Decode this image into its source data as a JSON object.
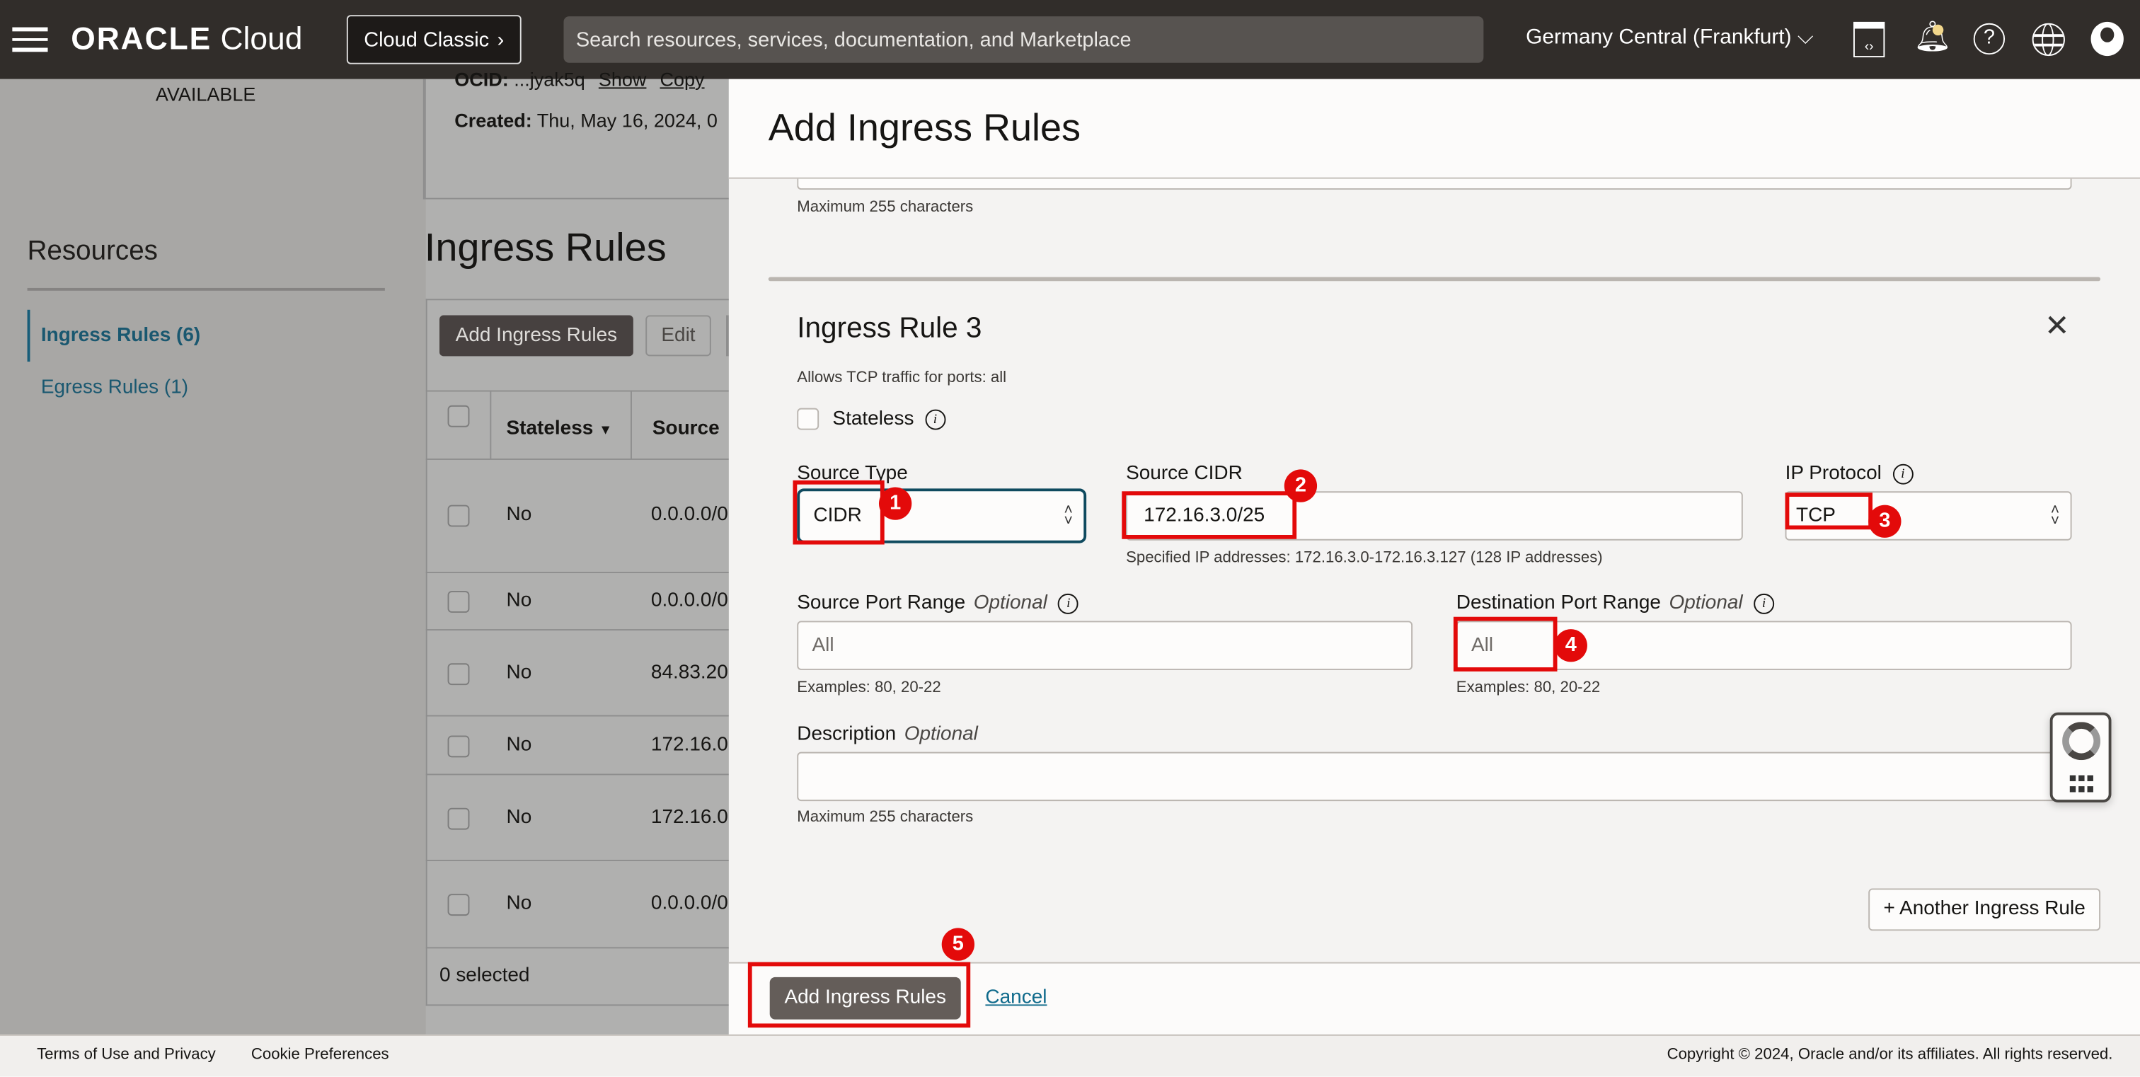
{
  "topbar": {
    "brand": "ORACLE",
    "brand_suffix": "Cloud",
    "classic_button": "Cloud Classic",
    "search_placeholder": "Search resources, services, documentation, and Marketplace",
    "region": "Germany Central (Frankfurt)",
    "icons": [
      "hamburger-menu-icon",
      "code-editor-icon",
      "bell-icon",
      "help-icon",
      "globe-icon",
      "profile-icon"
    ],
    "notification_dot_color": "#f2d78b"
  },
  "background_page": {
    "status": "AVAILABLE",
    "ocid_label": "OCID:",
    "ocid_value": "...jyak5q",
    "ocid_show": "Show",
    "ocid_copy": "Copy",
    "created_label": "Created:",
    "created_value": "Thu, May 16, 2024, 0",
    "resources_title": "Resources",
    "resources": [
      {
        "label": "Ingress Rules (6)",
        "active": true
      },
      {
        "label": "Egress Rules (1)",
        "active": false
      }
    ],
    "section_title": "Ingress Rules",
    "add_button": "Add Ingress Rules",
    "edit_button": "Edit",
    "columns": [
      "Stateless",
      "Source"
    ],
    "rows": [
      {
        "stateless": "No",
        "source": "0.0.0.0/0"
      },
      {
        "stateless": "No",
        "source": "0.0.0.0/0"
      },
      {
        "stateless": "No",
        "source": "84.83.20"
      },
      {
        "stateless": "No",
        "source": "172.16.0"
      },
      {
        "stateless": "No",
        "source": "172.16.0"
      },
      {
        "stateless": "No",
        "source": "0.0.0.0/0"
      }
    ],
    "selected_count": "0 selected"
  },
  "modal": {
    "title": "Add Ingress Rules",
    "prev_help": "Maximum 255 characters",
    "rule_title": "Ingress Rule 3",
    "rule_summary": "Allows TCP traffic for ports: all",
    "stateless_label": "Stateless",
    "stateless_checked": false,
    "source_type_label": "Source Type",
    "source_type_value": "CIDR",
    "source_cidr_label": "Source CIDR",
    "source_cidr_value": "172.16.3.0/25",
    "source_cidr_help": "Specified IP addresses: 172.16.3.0-172.16.3.127 (128 IP addresses)",
    "ip_protocol_label": "IP Protocol",
    "ip_protocol_value": "TCP",
    "source_port_label": "Source Port Range",
    "optional": "Optional",
    "source_port_placeholder": "All",
    "source_port_help": "Examples: 80, 20-22",
    "dest_port_label": "Destination Port Range",
    "dest_port_placeholder": "All",
    "dest_port_help": "Examples: 80, 20-22",
    "description_label": "Description",
    "description_help": "Maximum 255 characters",
    "another_rule_button": "+ Another Ingress Rule",
    "submit_button": "Add Ingress Rules",
    "cancel_link": "Cancel"
  },
  "annotations": [
    "1",
    "2",
    "3",
    "4",
    "5"
  ],
  "annotation_color": "#e30a0a",
  "footer": {
    "terms": "Terms of Use and Privacy",
    "cookies": "Cookie Preferences",
    "copyright": "Copyright © 2024, Oracle and/or its affiliates. All rights reserved."
  }
}
